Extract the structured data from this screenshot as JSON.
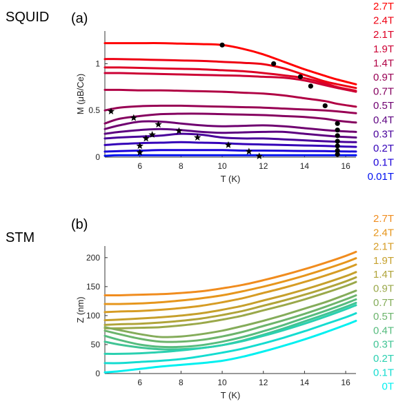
{
  "labels": {
    "squid": "SQUID",
    "stm": "STM",
    "panel_a": "(a)",
    "panel_b": "(b)"
  },
  "chart_data": [
    {
      "type": "line",
      "panel": "(a)",
      "xlabel": "T (K)",
      "ylabel": "M (μB/Ce)",
      "xlim": [
        4.3,
        16.5
      ],
      "ylim": [
        0,
        1.35
      ],
      "xticks": [
        6,
        8,
        10,
        12,
        14,
        16
      ],
      "yticks": [
        0,
        0.5,
        1
      ],
      "ytick_labels": [
        "0",
        "0.5",
        "1"
      ],
      "x": [
        4.3,
        5,
        6,
        7,
        8,
        9,
        10,
        11,
        12,
        13,
        14,
        15,
        15.6,
        16.5
      ],
      "series": [
        {
          "name": "2.7T",
          "color": "#ff0000",
          "values": [
            1.22,
            1.22,
            1.22,
            1.22,
            1.215,
            1.21,
            1.2,
            1.16,
            1.1,
            1.02,
            0.94,
            0.87,
            0.83,
            0.78
          ]
        },
        {
          "name": "2.4T",
          "color": "#ee0012",
          "values": [
            1.05,
            1.05,
            1.045,
            1.04,
            1.035,
            1.03,
            1.02,
            1.01,
            0.995,
            0.95,
            0.88,
            0.81,
            0.78,
            0.74
          ]
        },
        {
          "name": "2.1T",
          "color": "#dd0024",
          "values": [
            0.96,
            0.96,
            0.955,
            0.95,
            0.945,
            0.94,
            0.93,
            0.92,
            0.9,
            0.875,
            0.845,
            0.79,
            0.75,
            0.71
          ]
        },
        {
          "name": "1.9T",
          "color": "#cc0034",
          "values": [
            0.9,
            0.9,
            0.895,
            0.89,
            0.885,
            0.88,
            0.875,
            0.87,
            0.86,
            0.85,
            0.82,
            0.77,
            0.74,
            0.7
          ]
        },
        {
          "name": "1.4T",
          "color": "#b00044",
          "values": [
            0.72,
            0.72,
            0.715,
            0.715,
            0.71,
            0.705,
            0.7,
            0.69,
            0.68,
            0.66,
            0.63,
            0.6,
            0.57,
            0.54
          ]
        },
        {
          "name": "0.9T",
          "color": "#980054",
          "values": [
            0.5,
            0.53,
            0.545,
            0.55,
            0.55,
            0.545,
            0.54,
            0.535,
            0.53,
            0.52,
            0.51,
            0.5,
            0.49,
            0.47
          ]
        },
        {
          "name": "0.7T",
          "color": "#85005f",
          "values": [
            0.36,
            0.41,
            0.44,
            0.46,
            0.465,
            0.465,
            0.46,
            0.455,
            0.45,
            0.44,
            0.43,
            0.41,
            0.39,
            0.37
          ]
        },
        {
          "name": "0.5T",
          "color": "#6f0070",
          "values": [
            0.3,
            0.34,
            0.38,
            0.38,
            0.36,
            0.34,
            0.33,
            0.335,
            0.34,
            0.33,
            0.31,
            0.29,
            0.28,
            0.27
          ]
        },
        {
          "name": "0.4T",
          "color": "#5c0080",
          "values": [
            0.25,
            0.27,
            0.29,
            0.3,
            0.29,
            0.27,
            0.26,
            0.265,
            0.27,
            0.27,
            0.25,
            0.23,
            0.22,
            0.21
          ]
        },
        {
          "name": "0.3T",
          "color": "#48009a",
          "values": [
            0.2,
            0.21,
            0.22,
            0.23,
            0.25,
            0.24,
            0.21,
            0.2,
            0.2,
            0.19,
            0.18,
            0.17,
            0.165,
            0.16
          ]
        },
        {
          "name": "0.2T",
          "color": "#3300b8",
          "values": [
            0.13,
            0.14,
            0.15,
            0.155,
            0.16,
            0.155,
            0.15,
            0.14,
            0.135,
            0.13,
            0.125,
            0.12,
            0.115,
            0.11
          ]
        },
        {
          "name": "0.1T",
          "color": "#1a00d8",
          "values": [
            0.06,
            0.065,
            0.07,
            0.075,
            0.075,
            0.075,
            0.075,
            0.07,
            0.07,
            0.068,
            0.066,
            0.064,
            0.062,
            0.06
          ]
        },
        {
          "name": "0.01T",
          "color": "#0010f0",
          "values": [
            0.015,
            0.02,
            0.02,
            0.02,
            0.02,
            0.02,
            0.02,
            0.02,
            0.02,
            0.02,
            0.02,
            0.02,
            0.02,
            0.02
          ]
        }
      ],
      "dots": [
        [
          10,
          1.2
        ],
        [
          12.5,
          1.0
        ],
        [
          13.8,
          0.86
        ],
        [
          14.3,
          0.76
        ],
        [
          15.0,
          0.55
        ],
        [
          15.6,
          0.36
        ],
        [
          15.6,
          0.29
        ],
        [
          15.6,
          0.23
        ],
        [
          15.6,
          0.17
        ],
        [
          15.6,
          0.12
        ],
        [
          15.6,
          0.07
        ],
        [
          15.6,
          0.03
        ]
      ],
      "stars": [
        [
          4.6,
          0.49
        ],
        [
          5.7,
          0.42
        ],
        [
          6.9,
          0.35
        ],
        [
          6.6,
          0.24
        ],
        [
          7.9,
          0.28
        ],
        [
          6.3,
          0.2
        ],
        [
          8.8,
          0.21
        ],
        [
          6.0,
          0.12
        ],
        [
          10.3,
          0.13
        ],
        [
          11.3,
          0.06
        ],
        [
          11.8,
          0.01
        ],
        [
          6.0,
          0.05
        ]
      ]
    },
    {
      "type": "line",
      "panel": "(b)",
      "xlabel": "T (K)",
      "ylabel": "Z (nm)",
      "xlim": [
        4.3,
        16.5
      ],
      "ylim": [
        0,
        220
      ],
      "xticks": [
        6,
        8,
        10,
        12,
        14,
        16
      ],
      "yticks": [
        0,
        50,
        100,
        150,
        200
      ],
      "x": [
        4.3,
        5,
        6,
        7,
        8,
        9,
        10,
        11,
        12,
        13,
        14,
        15,
        16,
        16.5
      ],
      "series": [
        {
          "name": "2.7T",
          "color": "#f08c1e",
          "values": [
            135,
            135,
            136,
            137,
            139,
            142,
            147,
            153,
            161,
            170,
            180,
            191,
            203,
            210
          ]
        },
        {
          "name": "2.4T",
          "color": "#e6961c",
          "values": [
            120,
            120,
            121,
            123,
            126,
            130,
            135,
            142,
            150,
            159,
            169,
            180,
            192,
            199
          ]
        },
        {
          "name": "2.1T",
          "color": "#d69c24",
          "values": [
            106,
            107,
            108,
            110,
            113,
            117,
            123,
            130,
            139,
            148,
            158,
            169,
            181,
            188
          ]
        },
        {
          "name": "1.9T",
          "color": "#c6a02c",
          "values": [
            92,
            93,
            95,
            97,
            100,
            104,
            110,
            117,
            126,
            135,
            145,
            156,
            168,
            175
          ]
        },
        {
          "name": "1.4T",
          "color": "#b0a43a",
          "values": [
            84,
            85,
            86,
            88,
            91,
            95,
            101,
            108,
            117,
            126,
            136,
            147,
            159,
            166
          ]
        },
        {
          "name": "0.9T",
          "color": "#9aa84a",
          "values": [
            78,
            78,
            79,
            80,
            83,
            87,
            93,
            100,
            109,
            118,
            128,
            139,
            151,
            158
          ]
        },
        {
          "name": "0.7T",
          "color": "#84ac5a",
          "values": [
            80,
            75,
            68,
            63,
            64,
            68,
            74,
            82,
            91,
            101,
            112,
            123,
            136,
            143
          ]
        },
        {
          "name": "0.5T",
          "color": "#6cb46c",
          "values": [
            74,
            68,
            60,
            55,
            55,
            58,
            64,
            72,
            82,
            92,
            103,
            115,
            128,
            135
          ]
        },
        {
          "name": "0.4T",
          "color": "#56bc7e",
          "values": [
            65,
            58,
            50,
            46,
            46,
            49,
            55,
            63,
            73,
            84,
            96,
            108,
            121,
            128
          ]
        },
        {
          "name": "0.3T",
          "color": "#40c494",
          "values": [
            55,
            50,
            45,
            42,
            42,
            44,
            49,
            57,
            67,
            78,
            90,
            102,
            115,
            122
          ]
        },
        {
          "name": "0.2T",
          "color": "#2ad0b0",
          "values": [
            34,
            34,
            35,
            37,
            40,
            44,
            49,
            56,
            65,
            75,
            86,
            98,
            111,
            118
          ]
        },
        {
          "name": "0.1T",
          "color": "#14dcd0",
          "values": [
            18,
            18,
            20,
            22,
            25,
            30,
            36,
            43,
            52,
            62,
            73,
            85,
            97,
            104
          ]
        },
        {
          "name": "0T",
          "color": "#00f0f0",
          "values": [
            2,
            4,
            8,
            12,
            15,
            18,
            22,
            29,
            38,
            48,
            59,
            71,
            84,
            91
          ]
        }
      ]
    }
  ]
}
